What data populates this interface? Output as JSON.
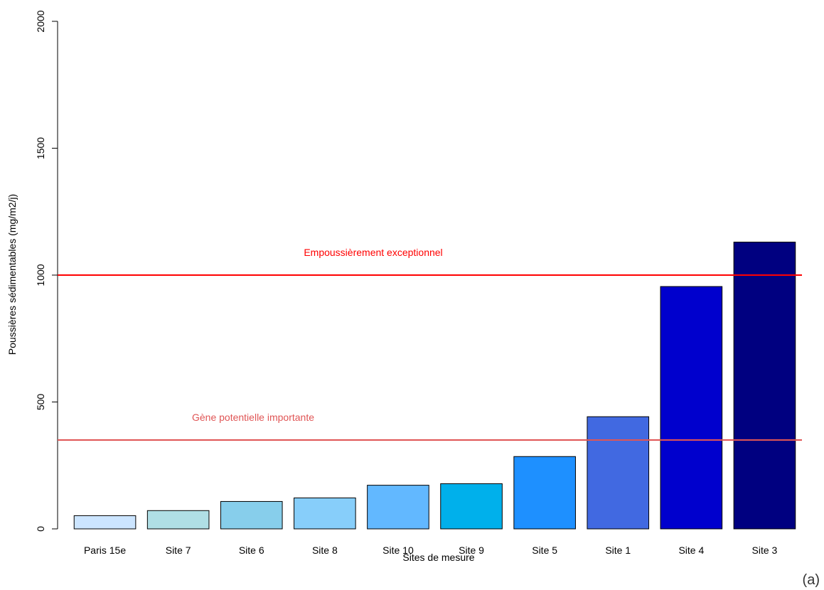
{
  "panel_tag": "(a)",
  "chart_data": {
    "type": "bar",
    "title": "",
    "xlabel": "Sites de mesure",
    "ylabel": "Poussières sédimentables (mg/m2/j)",
    "ylim": [
      0,
      2000
    ],
    "yticks": [
      0,
      500,
      1000,
      1500,
      2000
    ],
    "categories": [
      "Paris 15e",
      "Site 7",
      "Site 6",
      "Site 8",
      "Site 10",
      "Site 9",
      "Site 5",
      "Site 1",
      "Site 4",
      "Site 3"
    ],
    "values": [
      52,
      72,
      108,
      122,
      172,
      178,
      285,
      442,
      955,
      1130
    ],
    "bar_colors": [
      "#cce5ff",
      "#b0dfe5",
      "#87ceeb",
      "#87cefa",
      "#62b8ff",
      "#00b0eb",
      "#1e90ff",
      "#4169e1",
      "#0000cd",
      "#000080"
    ],
    "grid": false,
    "reference_lines": [
      {
        "value": 1000,
        "label": "Empoussièrement exceptionnel",
        "color": "#ff0000"
      },
      {
        "value": 350,
        "label": "Gène potentielle importante",
        "color": "#e05555"
      }
    ]
  }
}
